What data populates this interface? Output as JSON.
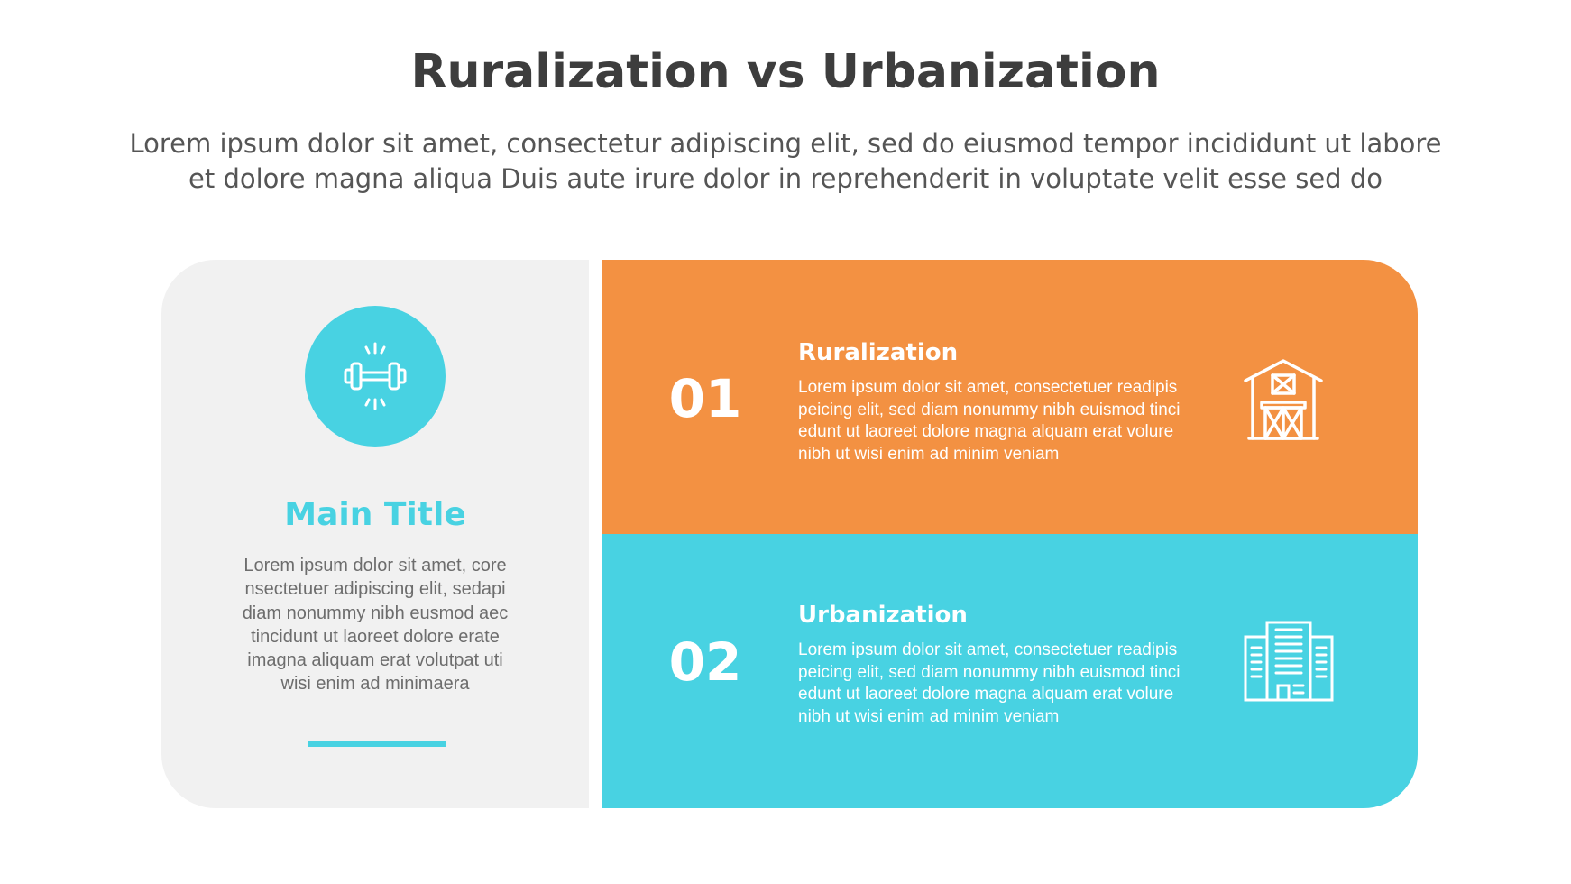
{
  "title": "Ruralization vs Urbanization",
  "subtitle": [
    "Lorem ipsum dolor sit amet, consectetur adipiscing elit, sed do eiusmod tempor incididunt ut labore",
    "et dolore magna aliqua Duis aute irure dolor in reprehenderit in voluptate velit esse sed do"
  ],
  "main": {
    "icon": "dumbbell-icon",
    "title": "Main Title",
    "body": [
      "Lorem ipsum dolor sit amet, core",
      "nsectetuer adipiscing elit, sedapi",
      "diam nonummy nibh eusmod aec",
      "tincidunt ut laoreet dolore erate",
      "imagna aliquam erat volutpat  uti",
      "wisi enim ad minimaera"
    ]
  },
  "items": [
    {
      "number": "01",
      "heading": "Ruralization",
      "icon": "barn-icon",
      "color": "#f39142",
      "body": [
        "Lorem ipsum dolor sit amet, consectetuer readipis",
        "peicing elit, sed diam nonummy nibh euismod tinci",
        "edunt ut laoreet dolore magna alquam erat volure",
        "nibh ut wisi enim ad minim veniam"
      ]
    },
    {
      "number": "02",
      "heading": "Urbanization",
      "icon": "city-buildings-icon",
      "color": "#48d2e2",
      "body": [
        "Lorem ipsum dolor sit amet, consectetuer readipis",
        "peicing elit, sed diam nonummy nibh euismod tinci",
        "edunt ut laoreet dolore magna alquam erat volure",
        "nibh ut wisi enim ad minim veniam"
      ]
    }
  ],
  "colors": {
    "accent": "#48d2e2",
    "orange": "#f39142",
    "panel": "#f1f1f1"
  }
}
